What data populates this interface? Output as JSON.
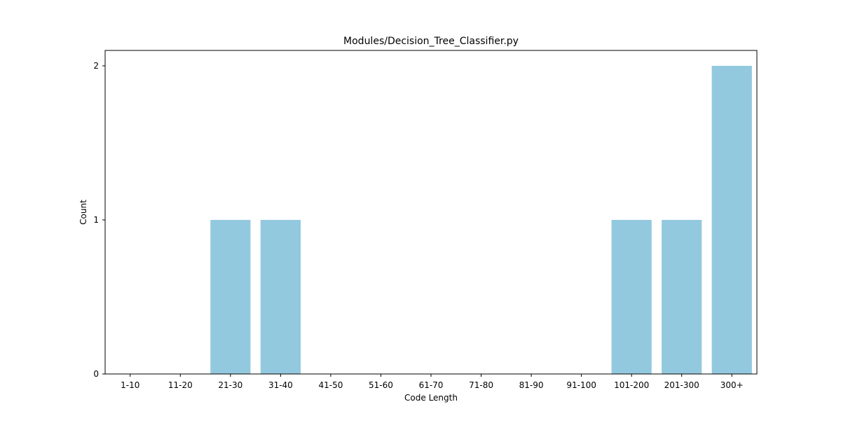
{
  "chart_data": {
    "type": "bar",
    "title": "Modules/Decision_Tree_Classifier.py",
    "xlabel": "Code Length",
    "ylabel": "Count",
    "categories": [
      "1-10",
      "11-20",
      "21-30",
      "31-40",
      "41-50",
      "51-60",
      "61-70",
      "71-80",
      "81-90",
      "91-100",
      "101-200",
      "201-300",
      "300+"
    ],
    "values": [
      0,
      0,
      1,
      1,
      0,
      0,
      0,
      0,
      0,
      0,
      1,
      1,
      2
    ],
    "ylim": [
      0,
      2.1
    ],
    "yticks": [
      0,
      1,
      2
    ],
    "grid": false,
    "legend": "none",
    "bar_color": "#93c9de"
  }
}
